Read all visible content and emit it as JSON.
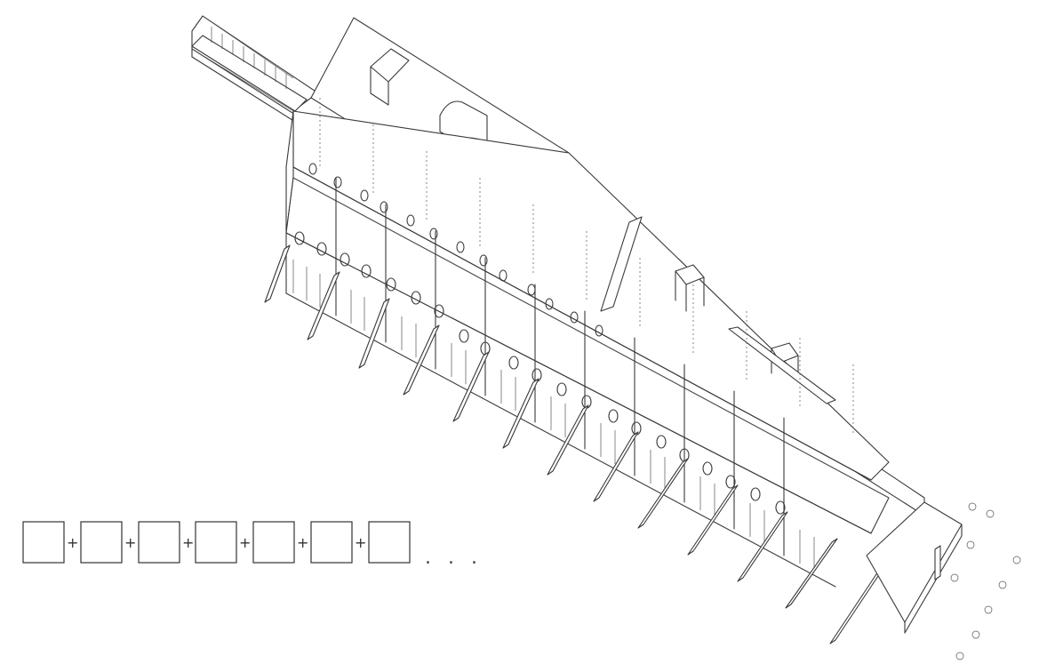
{
  "diagram": {
    "module_sequence": {
      "module_count": 7,
      "separator": "+",
      "continuation": ". . ."
    }
  }
}
